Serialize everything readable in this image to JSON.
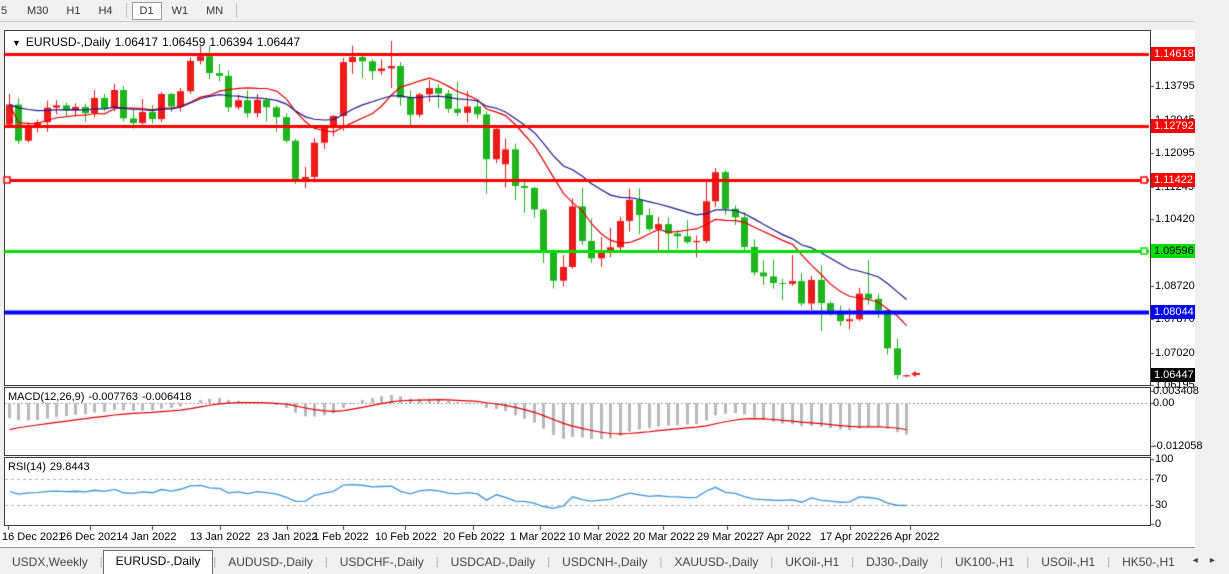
{
  "toolbar": {
    "timeframes": [
      {
        "label": "5",
        "active": false,
        "partial": true
      },
      {
        "label": "M30",
        "active": false,
        "partial": false
      },
      {
        "label": "H1",
        "active": false,
        "partial": false
      },
      {
        "label": "H4",
        "active": false,
        "partial": false
      },
      {
        "label": "D1",
        "active": true,
        "partial": false
      },
      {
        "label": "W1",
        "active": false,
        "partial": false
      },
      {
        "label": "MN",
        "active": false,
        "partial": false
      }
    ]
  },
  "header": {
    "symbol": "EURUSD-,Daily",
    "open": "1.06417",
    "high": "1.06459",
    "low": "1.06394",
    "close": "1.06447"
  },
  "price_axis": {
    "ticks": [
      {
        "label": "1.13795",
        "value": 1.13795
      },
      {
        "label": "1.12945",
        "value": 1.12945
      },
      {
        "label": "1.12095",
        "value": 1.12095
      },
      {
        "label": "1.11245",
        "value": 1.11245
      },
      {
        "label": "1.10420",
        "value": 1.1042
      },
      {
        "label": "1.08720",
        "value": 1.0872
      },
      {
        "label": "1.07870",
        "value": 1.0787
      },
      {
        "label": "1.07020",
        "value": 1.0702
      },
      {
        "label": "1.06195",
        "value": 1.06195
      }
    ],
    "current_price": {
      "label": "1.06447",
      "value": 1.06447,
      "bg": "#000000",
      "fg": "#ffffff"
    }
  },
  "chart_data": [
    {
      "type": "candlestick",
      "symbol": "EURUSD-,Daily",
      "ylim": [
        1.06223,
        1.15201
      ],
      "colors": {
        "bull": "#ee1a1a",
        "bear": "#1db41d"
      },
      "hlines": [
        {
          "label": "1.14618",
          "value": 1.14618,
          "color": "#ff0000",
          "fg": "#ffffff",
          "width": 3,
          "handles": []
        },
        {
          "label": "1.12792",
          "value": 1.12792,
          "color": "#ff0000",
          "fg": "#ffffff",
          "width": 3,
          "handles": []
        },
        {
          "label": "1.11422",
          "value": 1.11422,
          "color": "#ff0000",
          "fg": "#ffffff",
          "width": 3,
          "handles": [
            "left",
            "right"
          ]
        },
        {
          "label": "1.09596",
          "value": 1.09596,
          "color": "#00dd00",
          "fg": "#000000",
          "width": 3,
          "handles": [
            "right"
          ]
        },
        {
          "label": "1.08044",
          "value": 1.08044,
          "color": "#0000ff",
          "fg": "#ffffff",
          "width": 4,
          "handles": []
        }
      ],
      "moving_averages": [
        {
          "method": "sma",
          "period": 10,
          "color": "#e00000"
        },
        {
          "method": "ema",
          "period": 21,
          "color": "#1a1a8c"
        }
      ],
      "x_labels": [
        {
          "label": "16 Dec 2021",
          "x": 8
        },
        {
          "label": "26 Dec 2021",
          "x": 90
        },
        {
          "label": "4 Jan 2022",
          "x": 152
        },
        {
          "label": "13 Jan 2022",
          "x": 220
        },
        {
          "label": "23 Jan 2022",
          "x": 287
        },
        {
          "label": "1 Feb 2022",
          "x": 343
        },
        {
          "label": "10 Feb 2022",
          "x": 405
        },
        {
          "label": "20 Feb 2022",
          "x": 473
        },
        {
          "label": "1 Mar 2022",
          "x": 540
        },
        {
          "label": "10 Mar 2022",
          "x": 598
        },
        {
          "label": "20 Mar 2022",
          "x": 663
        },
        {
          "label": "29 Mar 2022",
          "x": 727
        },
        {
          "label": "7 Apr 2022",
          "x": 788
        },
        {
          "label": "17 Apr 2022",
          "x": 850
        },
        {
          "label": "26 Apr 2022",
          "x": 910
        }
      ],
      "candles": [
        [
          1.1282,
          1.136,
          1.1278,
          1.1333
        ],
        [
          1.1333,
          1.1349,
          1.1233,
          1.1241
        ],
        [
          1.1241,
          1.1288,
          1.1237,
          1.1279
        ],
        [
          1.1279,
          1.1295,
          1.1262,
          1.1288
        ],
        [
          1.1288,
          1.1343,
          1.1263,
          1.1325
        ],
        [
          1.1325,
          1.1344,
          1.1308,
          1.1331
        ],
        [
          1.1331,
          1.1338,
          1.1305,
          1.1318
        ],
        [
          1.1318,
          1.1336,
          1.1302,
          1.1327
        ],
        [
          1.1327,
          1.1335,
          1.1288,
          1.1311
        ],
        [
          1.1311,
          1.137,
          1.13,
          1.135
        ],
        [
          1.135,
          1.1361,
          1.1316,
          1.1324
        ],
        [
          1.1324,
          1.1386,
          1.1316,
          1.137
        ],
        [
          1.137,
          1.138,
          1.129,
          1.1298
        ],
        [
          1.1298,
          1.1323,
          1.1272,
          1.1286
        ],
        [
          1.1286,
          1.1347,
          1.1282,
          1.1314
        ],
        [
          1.1314,
          1.1332,
          1.1285,
          1.1296
        ],
        [
          1.1296,
          1.1365,
          1.1288,
          1.136
        ],
        [
          1.136,
          1.1363,
          1.1314,
          1.1328
        ],
        [
          1.1328,
          1.1375,
          1.1315,
          1.1367
        ],
        [
          1.1367,
          1.1453,
          1.136,
          1.1444
        ],
        [
          1.1444,
          1.1482,
          1.1435,
          1.1456
        ],
        [
          1.1456,
          1.1483,
          1.1398,
          1.1413
        ],
        [
          1.1413,
          1.1436,
          1.1392,
          1.1406
        ],
        [
          1.1406,
          1.142,
          1.1314,
          1.1326
        ],
        [
          1.1326,
          1.1358,
          1.132,
          1.1344
        ],
        [
          1.1344,
          1.1369,
          1.13,
          1.1311
        ],
        [
          1.1311,
          1.136,
          1.13,
          1.1345
        ],
        [
          1.1345,
          1.1349,
          1.129,
          1.1326
        ],
        [
          1.1326,
          1.1331,
          1.1263,
          1.1301
        ],
        [
          1.1301,
          1.131,
          1.1235,
          1.1241
        ],
        [
          1.1241,
          1.1246,
          1.1131,
          1.1144
        ],
        [
          1.1144,
          1.1175,
          1.1121,
          1.1149
        ],
        [
          1.1149,
          1.1248,
          1.1135,
          1.1236
        ],
        [
          1.1236,
          1.1279,
          1.122,
          1.1274
        ],
        [
          1.1274,
          1.1306,
          1.1252,
          1.1304
        ],
        [
          1.1304,
          1.1452,
          1.1266,
          1.1441
        ],
        [
          1.1441,
          1.1483,
          1.1411,
          1.1454
        ],
        [
          1.1454,
          1.1459,
          1.14,
          1.1443
        ],
        [
          1.1443,
          1.1448,
          1.1396,
          1.1418
        ],
        [
          1.1418,
          1.1448,
          1.1409,
          1.1425
        ],
        [
          1.1425,
          1.1495,
          1.1375,
          1.1431
        ],
        [
          1.1431,
          1.1441,
          1.133,
          1.1351
        ],
        [
          1.1351,
          1.1369,
          1.1278,
          1.1307
        ],
        [
          1.1307,
          1.1363,
          1.13,
          1.1359
        ],
        [
          1.1359,
          1.1395,
          1.134,
          1.1375
        ],
        [
          1.1375,
          1.1385,
          1.1324,
          1.1361
        ],
        [
          1.1361,
          1.137,
          1.1312,
          1.1322
        ],
        [
          1.1322,
          1.1391,
          1.1303,
          1.1312
        ],
        [
          1.1312,
          1.1367,
          1.1287,
          1.1328
        ],
        [
          1.1328,
          1.1344,
          1.1297,
          1.1308
        ],
        [
          1.1308,
          1.1316,
          1.1106,
          1.1194
        ],
        [
          1.1194,
          1.1274,
          1.1184,
          1.1271
        ],
        [
          1.1181,
          1.1246,
          1.1122,
          1.1219
        ],
        [
          1.1219,
          1.1234,
          1.109,
          1.1126
        ],
        [
          1.1126,
          1.1145,
          1.1058,
          1.1121
        ],
        [
          1.1121,
          1.1124,
          1.1045,
          1.1066
        ],
        [
          1.1066,
          1.1069,
          1.093,
          1.096
        ],
        [
          1.096,
          1.0965,
          1.0865,
          1.0885
        ],
        [
          1.0885,
          1.095,
          1.087,
          1.092
        ],
        [
          1.092,
          1.1095,
          1.0915,
          1.1074
        ],
        [
          1.1074,
          1.1121,
          1.0976,
          1.0986
        ],
        [
          1.0986,
          1.1043,
          1.093,
          1.0942
        ],
        [
          1.0942,
          1.0996,
          1.092,
          1.0958
        ],
        [
          1.0958,
          1.102,
          1.0945,
          1.097
        ],
        [
          1.097,
          1.1047,
          1.096,
          1.1037
        ],
        [
          1.1037,
          1.1119,
          1.101,
          1.1091
        ],
        [
          1.1091,
          1.112,
          1.1003,
          1.1052
        ],
        [
          1.1052,
          1.1069,
          1.101,
          1.1016
        ],
        [
          1.1016,
          1.1047,
          1.0962,
          1.1029
        ],
        [
          1.1029,
          1.1046,
          1.0963,
          1.1005
        ],
        [
          1.1005,
          1.1014,
          1.0966,
          1.0998
        ],
        [
          1.0998,
          1.104,
          1.0979,
          1.0983
        ],
        [
          1.0983,
          1.1,
          1.0944,
          1.0986
        ],
        [
          1.0986,
          1.1137,
          1.098,
          1.1087
        ],
        [
          1.1087,
          1.1171,
          1.1073,
          1.1161
        ],
        [
          1.1161,
          1.1166,
          1.1052,
          1.1068
        ],
        [
          1.1068,
          1.1077,
          1.1027,
          1.1046
        ],
        [
          1.1046,
          1.1059,
          1.096,
          1.0971
        ],
        [
          1.0971,
          1.099,
          1.0898,
          1.0906
        ],
        [
          1.0906,
          1.0938,
          1.0874,
          1.0896
        ],
        [
          1.0896,
          1.0939,
          1.0865,
          1.0879
        ],
        [
          1.0879,
          1.089,
          1.0836,
          1.0877
        ],
        [
          1.0877,
          1.095,
          1.0872,
          1.0884
        ],
        [
          1.0884,
          1.0904,
          1.0821,
          1.0827
        ],
        [
          1.0827,
          1.0897,
          1.0809,
          1.0887
        ],
        [
          1.0887,
          1.0924,
          1.0757,
          1.0828
        ],
        [
          1.0828,
          1.0833,
          1.0796,
          1.0808
        ],
        [
          1.0808,
          1.0822,
          1.077,
          1.0782
        ],
        [
          1.0782,
          1.0815,
          1.0761,
          1.0787
        ],
        [
          1.0787,
          1.0867,
          1.0783,
          1.0852
        ],
        [
          1.0852,
          1.0937,
          1.0824,
          1.0839
        ],
        [
          1.0839,
          1.0852,
          1.079,
          1.081
        ],
        [
          1.081,
          1.0812,
          1.0697,
          1.0713
        ],
        [
          1.0713,
          1.0738,
          1.0635,
          1.0645
        ],
        [
          1.06417,
          1.06459,
          1.06394,
          1.06447
        ]
      ],
      "signal_arrow": {
        "x": 915,
        "y": 374,
        "color": "#ee1a1a"
      }
    },
    {
      "type": "bar",
      "label": "MACD(12,26,9)",
      "main_value": "-0.007763",
      "signal_value": "-0.006418",
      "params": {
        "fast": 12,
        "slow": 26,
        "signal": 9
      },
      "ylim": [
        -0.0143,
        0.0042
      ],
      "axis_labels": [
        {
          "label": "0.003408",
          "value": 0.003408
        },
        {
          "label": "0.00",
          "value": 0
        },
        {
          "label": "-0.012058",
          "value": -0.012058
        }
      ],
      "colors": {
        "histogram": "#b8b8b8",
        "signal": "#e00000",
        "zero_line": "#999999"
      },
      "render_hints": {
        "ema_fast_seed_offset": 0.0015,
        "ema_slow_seed_offset": 0.006,
        "signal_seed_offset": -0.004
      }
    },
    {
      "type": "line",
      "label": "RSI(14)",
      "value": "29.8443",
      "period": 14,
      "levels": [
        70,
        30
      ],
      "ylim": [
        0,
        100
      ],
      "axis_labels": [
        {
          "label": "100",
          "value": 100
        },
        {
          "label": "70",
          "value": 70
        },
        {
          "label": "30",
          "value": 30
        },
        {
          "label": "0",
          "value": 0
        }
      ],
      "colors": {
        "line": "#3d94d8",
        "level": "#b0b0b0"
      },
      "render_hints": {
        "seed_avg_gain": 0.004,
        "seed_avg_loss": 0.004
      }
    }
  ],
  "tabs": {
    "active_index": 1,
    "items": [
      "USDX,Weekly",
      "EURUSD-,Daily",
      "AUDUSD-,Daily",
      "USDCHF-,Daily",
      "USDCAD-,Daily",
      "USDCNH-,Daily",
      "XAUUSD-,Daily",
      "UKOil-,H1",
      "DJ30-,Daily",
      "UK100-,H1",
      "USOil-,H1",
      "HK50-,H1"
    ],
    "scroll_left": "◂",
    "scroll_right": "▸"
  }
}
